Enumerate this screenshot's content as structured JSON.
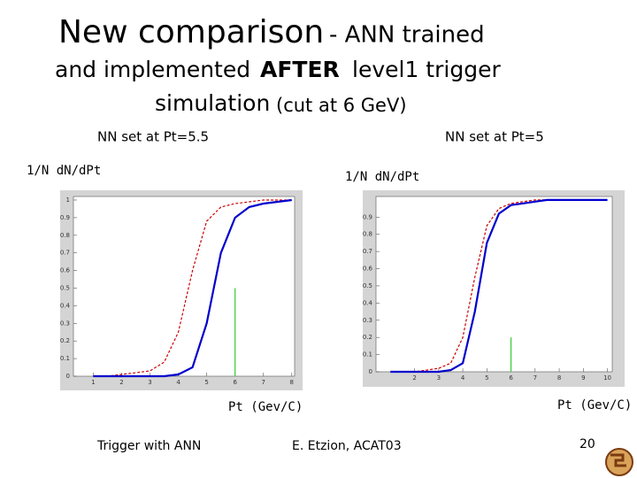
{
  "slide": {
    "title": {
      "line1_main": "New comparison",
      "line1_rest": "- ANN trained",
      "line2_start": "and implemented",
      "line2_bold": "AFTER",
      "line2_end": "level1 trigger",
      "line3_main": "simulation",
      "line3_rest": "(cut at 6 GeV)"
    },
    "footer": {
      "left": "Trigger with ANN",
      "center": "E. Etzion,  ACAT03",
      "page": "20"
    }
  },
  "chart_data": [
    {
      "type": "line",
      "subtitle": "NN set at Pt=5.5",
      "y_label": "1/N dN/dPt",
      "x_label": "Pt (Gev/C)",
      "x": [
        1,
        1.5,
        2,
        2.5,
        3,
        3.5,
        4,
        4.5,
        5,
        5.5,
        6,
        6.5,
        7,
        7.5,
        8
      ],
      "series": [
        {
          "color": "#cc0000",
          "values": [
            0,
            0,
            0.01,
            0.02,
            0.03,
            0.08,
            0.25,
            0.6,
            0.88,
            0.96,
            0.98,
            0.99,
            1,
            1,
            1
          ]
        },
        {
          "color": "#0000cc",
          "values": [
            0,
            0,
            0,
            0,
            0,
            0,
            0.01,
            0.05,
            0.3,
            0.7,
            0.9,
            0.96,
            0.98,
            0.99,
            1
          ]
        }
      ],
      "cut_line": {
        "x": 6,
        "y": 0.5,
        "color": "#33cc33"
      },
      "xlim": [
        0.3,
        8.1
      ],
      "ylim": [
        0,
        1.02
      ],
      "xticks": [
        1,
        2,
        3,
        4,
        5,
        6,
        7,
        8
      ],
      "yticks": [
        0,
        0.1,
        0.2,
        0.3,
        0.4,
        0.5,
        0.6,
        0.7,
        0.8,
        0.9,
        1
      ]
    },
    {
      "type": "line",
      "subtitle": "NN set at Pt=5",
      "y_label": "1/N dN/dPt",
      "x_label": "Pt (Gev/C)",
      "x": [
        1,
        1.5,
        2,
        2.5,
        3,
        3.5,
        4,
        4.5,
        5,
        5.5,
        6,
        6.5,
        7,
        7.5,
        8,
        8.5,
        9,
        9.5,
        10
      ],
      "series": [
        {
          "color": "#cc0000",
          "values": [
            0,
            0,
            0,
            0.01,
            0.02,
            0.05,
            0.2,
            0.55,
            0.85,
            0.95,
            0.98,
            0.99,
            1,
            1,
            1,
            1,
            1,
            1,
            1
          ]
        },
        {
          "color": "#0000cc",
          "values": [
            0,
            0,
            0,
            0,
            0,
            0.01,
            0.05,
            0.35,
            0.75,
            0.92,
            0.97,
            0.98,
            0.99,
            1,
            1,
            1,
            1,
            1,
            1
          ]
        }
      ],
      "cut_line": {
        "x": 6,
        "y": 0.2,
        "color": "#33cc33"
      },
      "xlim": [
        0.4,
        10.2
      ],
      "ylim": [
        0,
        1.02
      ],
      "xticks": [
        2,
        3,
        4,
        5,
        6,
        7,
        8,
        9,
        10
      ],
      "yticks": [
        0,
        0.1,
        0.2,
        0.3,
        0.4,
        0.5,
        0.6,
        0.7,
        0.8,
        0.9
      ]
    }
  ]
}
